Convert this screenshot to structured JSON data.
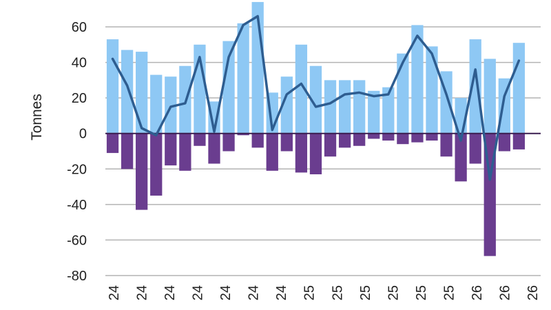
{
  "chart_data": {
    "type": "bar",
    "title": "",
    "xlabel": "",
    "ylabel": "Tonnes",
    "ylim": [
      -80,
      70
    ],
    "yticks": [
      60,
      40,
      20,
      0,
      -20,
      -40,
      -60,
      -80
    ],
    "grid": true,
    "legend": "none",
    "categories": [
      "24",
      "24",
      "24",
      "24",
      "24",
      "24",
      "24",
      "24",
      "24",
      "24",
      "24",
      "24",
      "25",
      "25",
      "25",
      "25",
      "25",
      "25",
      "25",
      "25",
      "25",
      "25",
      "25",
      "25",
      "26",
      "26",
      "26",
      "26",
      "26",
      "26"
    ],
    "x_tick_labels": [
      "24",
      "24",
      "24",
      "24",
      "24",
      "24",
      "24",
      "25",
      "25",
      "25",
      "25",
      "25",
      "25",
      "26",
      "26",
      "26"
    ],
    "series": [
      {
        "type": "bar",
        "color": "#8ec8f4",
        "values": [
          53,
          47,
          46,
          33,
          32,
          38,
          50,
          18,
          52,
          62,
          74,
          23,
          32,
          50,
          38,
          30,
          30,
          30,
          24,
          26,
          45,
          61,
          49,
          35,
          20,
          53,
          42,
          31,
          51,
          0
        ]
      },
      {
        "type": "bar",
        "color": "#6a3d8f",
        "values": [
          -11,
          -20,
          -43,
          -35,
          -18,
          -21,
          -7,
          -17,
          -10,
          -1,
          -8,
          -21,
          -10,
          -22,
          -23,
          -13,
          -8,
          -7,
          -3,
          -4,
          -6,
          -5,
          -4,
          -13,
          -27,
          -17,
          -69,
          -10,
          -9,
          0
        ]
      },
      {
        "type": "line",
        "color": "#2e5d90",
        "values": [
          42,
          27,
          3,
          -1,
          15,
          17,
          43,
          1,
          43,
          61,
          66,
          2,
          22,
          28,
          15,
          17,
          22,
          23,
          21,
          22,
          40,
          55,
          45,
          22,
          -4,
          36,
          -26,
          21,
          41,
          null
        ]
      }
    ]
  }
}
